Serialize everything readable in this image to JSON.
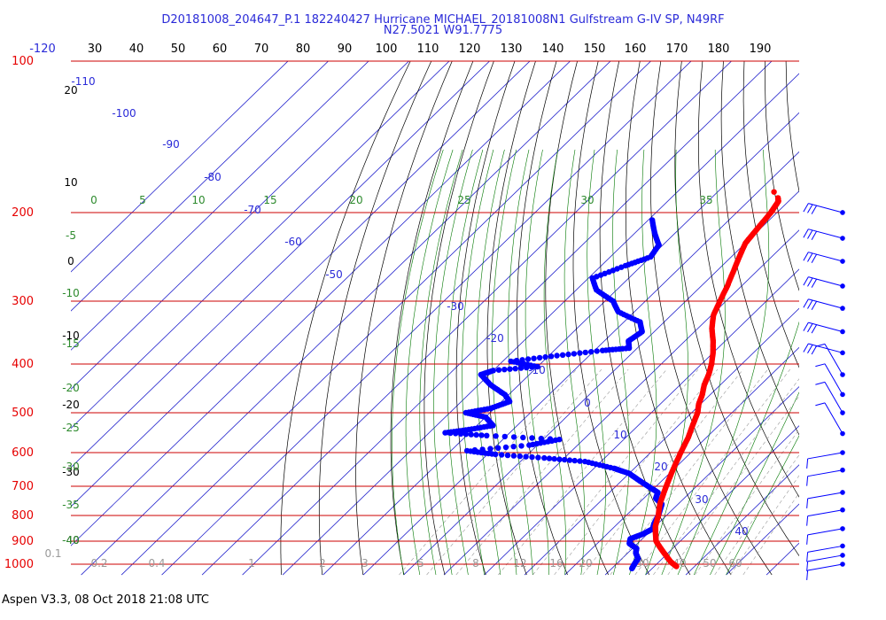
{
  "header": {
    "title_line1": "D20181008_204647_P.1 182240427 Hurricane MICHAEL_20181008N1 Gulfstream G-IV SP, N49RF",
    "title_line2": "N27.5021 W91.7775"
  },
  "footer": {
    "text": "Aspen V3.3, 08 Oct 2018  21:08 UTC"
  },
  "colors": {
    "temperature": "#ff0000",
    "dewpoint": "#0000ff",
    "isobar": "#cc0000",
    "isotherm": "#2222cc",
    "dry_adiabat": "#000000",
    "moist_adiabat": "#007700",
    "mixing_ratio": "#999999"
  },
  "chart_data": {
    "type": "skew-t",
    "pressure_range": [
      100,
      1000
    ],
    "pressure_labels": [
      "100",
      "200",
      "300",
      "400",
      "500",
      "600",
      "700",
      "800",
      "900",
      "1000"
    ],
    "top_axis_labels": [
      "-120",
      "30",
      "40",
      "50",
      "60",
      "70",
      "80",
      "90",
      "100",
      "110",
      "120",
      "130",
      "140",
      "150",
      "160",
      "170",
      "180",
      "190"
    ],
    "isotherm_labels": [
      "-110",
      "-100",
      "-90",
      "-80",
      "-70",
      "-60",
      "-50",
      "-30",
      "-20",
      "-10",
      "0",
      "10",
      "20",
      "30",
      "40"
    ],
    "dry_adiabat_labels": [
      "20",
      "10",
      "0",
      "-10",
      "-20",
      "-30",
      "-40"
    ],
    "moist_adiabat_labels": [
      "0",
      "5",
      "10",
      "15",
      "20",
      "25",
      "30",
      "35"
    ],
    "left_green_labels": [
      "-5",
      "-10",
      "-15",
      "-20",
      "-25",
      "-30",
      "-35",
      "-40"
    ],
    "mixing_ratio_labels": [
      "0.1",
      "0.2",
      "0.4",
      "1",
      "2",
      "3",
      "5",
      "8",
      "12",
      "16",
      "20",
      "30",
      "40",
      "50",
      "60"
    ],
    "temperature_profile": [
      [
        187,
        -43.5
      ],
      [
        190,
        -42.5
      ],
      [
        195,
        -42
      ],
      [
        200,
        -41.5
      ],
      [
        210,
        -41
      ],
      [
        220,
        -40.5
      ],
      [
        230,
        -40
      ],
      [
        245,
        -38
      ],
      [
        260,
        -36
      ],
      [
        280,
        -33.5
      ],
      [
        300,
        -31.5
      ],
      [
        320,
        -29.5
      ],
      [
        340,
        -26.5
      ],
      [
        360,
        -23
      ],
      [
        380,
        -20
      ],
      [
        400,
        -17.5
      ],
      [
        420,
        -15.5
      ],
      [
        440,
        -14
      ],
      [
        460,
        -12
      ],
      [
        480,
        -10.5
      ],
      [
        500,
        -8.5
      ],
      [
        530,
        -6.5
      ],
      [
        560,
        -4.5
      ],
      [
        600,
        -2.5
      ],
      [
        640,
        -0.5
      ],
      [
        680,
        1.5
      ],
      [
        720,
        3.5
      ],
      [
        760,
        5.5
      ],
      [
        800,
        8
      ],
      [
        840,
        10
      ],
      [
        870,
        12
      ],
      [
        900,
        14
      ],
      [
        930,
        17
      ],
      [
        960,
        20
      ],
      [
        990,
        23
      ],
      [
        1010,
        25.5
      ]
    ],
    "temperature_outlier": [
      [
        182,
        -46
      ]
    ],
    "dewpoint_profile": [
      [
        207,
        -69
      ],
      [
        220,
        -65
      ],
      [
        232,
        -61
      ],
      [
        245,
        -60
      ],
      [
        255,
        -64
      ],
      [
        270,
        -69
      ],
      [
        285,
        -65
      ],
      [
        300,
        -58
      ],
      [
        315,
        -54
      ],
      [
        330,
        -46
      ],
      [
        345,
        -43
      ],
      [
        360,
        -44
      ],
      [
        372,
        -42
      ],
      [
        376,
        -48
      ],
      [
        385,
        -58
      ],
      [
        395,
        -68
      ],
      [
        405,
        -60
      ],
      [
        412,
        -70
      ],
      [
        420,
        -72
      ],
      [
        440,
        -67
      ],
      [
        460,
        -61
      ],
      [
        475,
        -58
      ],
      [
        490,
        -61
      ],
      [
        500,
        -66
      ],
      [
        510,
        -60
      ],
      [
        530,
        -56
      ],
      [
        540,
        -61
      ],
      [
        548,
        -66
      ],
      [
        555,
        -55
      ],
      [
        565,
        -36
      ],
      [
        580,
        -42
      ],
      [
        595,
        -56
      ],
      [
        605,
        -48
      ],
      [
        615,
        -35
      ],
      [
        625,
        -24
      ],
      [
        645,
        -15
      ],
      [
        660,
        -10
      ],
      [
        680,
        -6
      ],
      [
        700,
        -2
      ],
      [
        720,
        2
      ],
      [
        740,
        3
      ],
      [
        760,
        6
      ],
      [
        780,
        7
      ],
      [
        800,
        8
      ],
      [
        830,
        9
      ],
      [
        850,
        10
      ],
      [
        870,
        9
      ],
      [
        890,
        7
      ],
      [
        910,
        8
      ],
      [
        930,
        11
      ],
      [
        950,
        12
      ],
      [
        975,
        14
      ],
      [
        1000,
        14.5
      ],
      [
        1020,
        15
      ]
    ],
    "wind_barb_pressures": [
      200,
      225,
      250,
      280,
      310,
      345,
      380,
      420,
      460,
      500,
      550,
      600,
      650,
      720,
      780,
      850,
      920,
      960,
      1000
    ]
  }
}
